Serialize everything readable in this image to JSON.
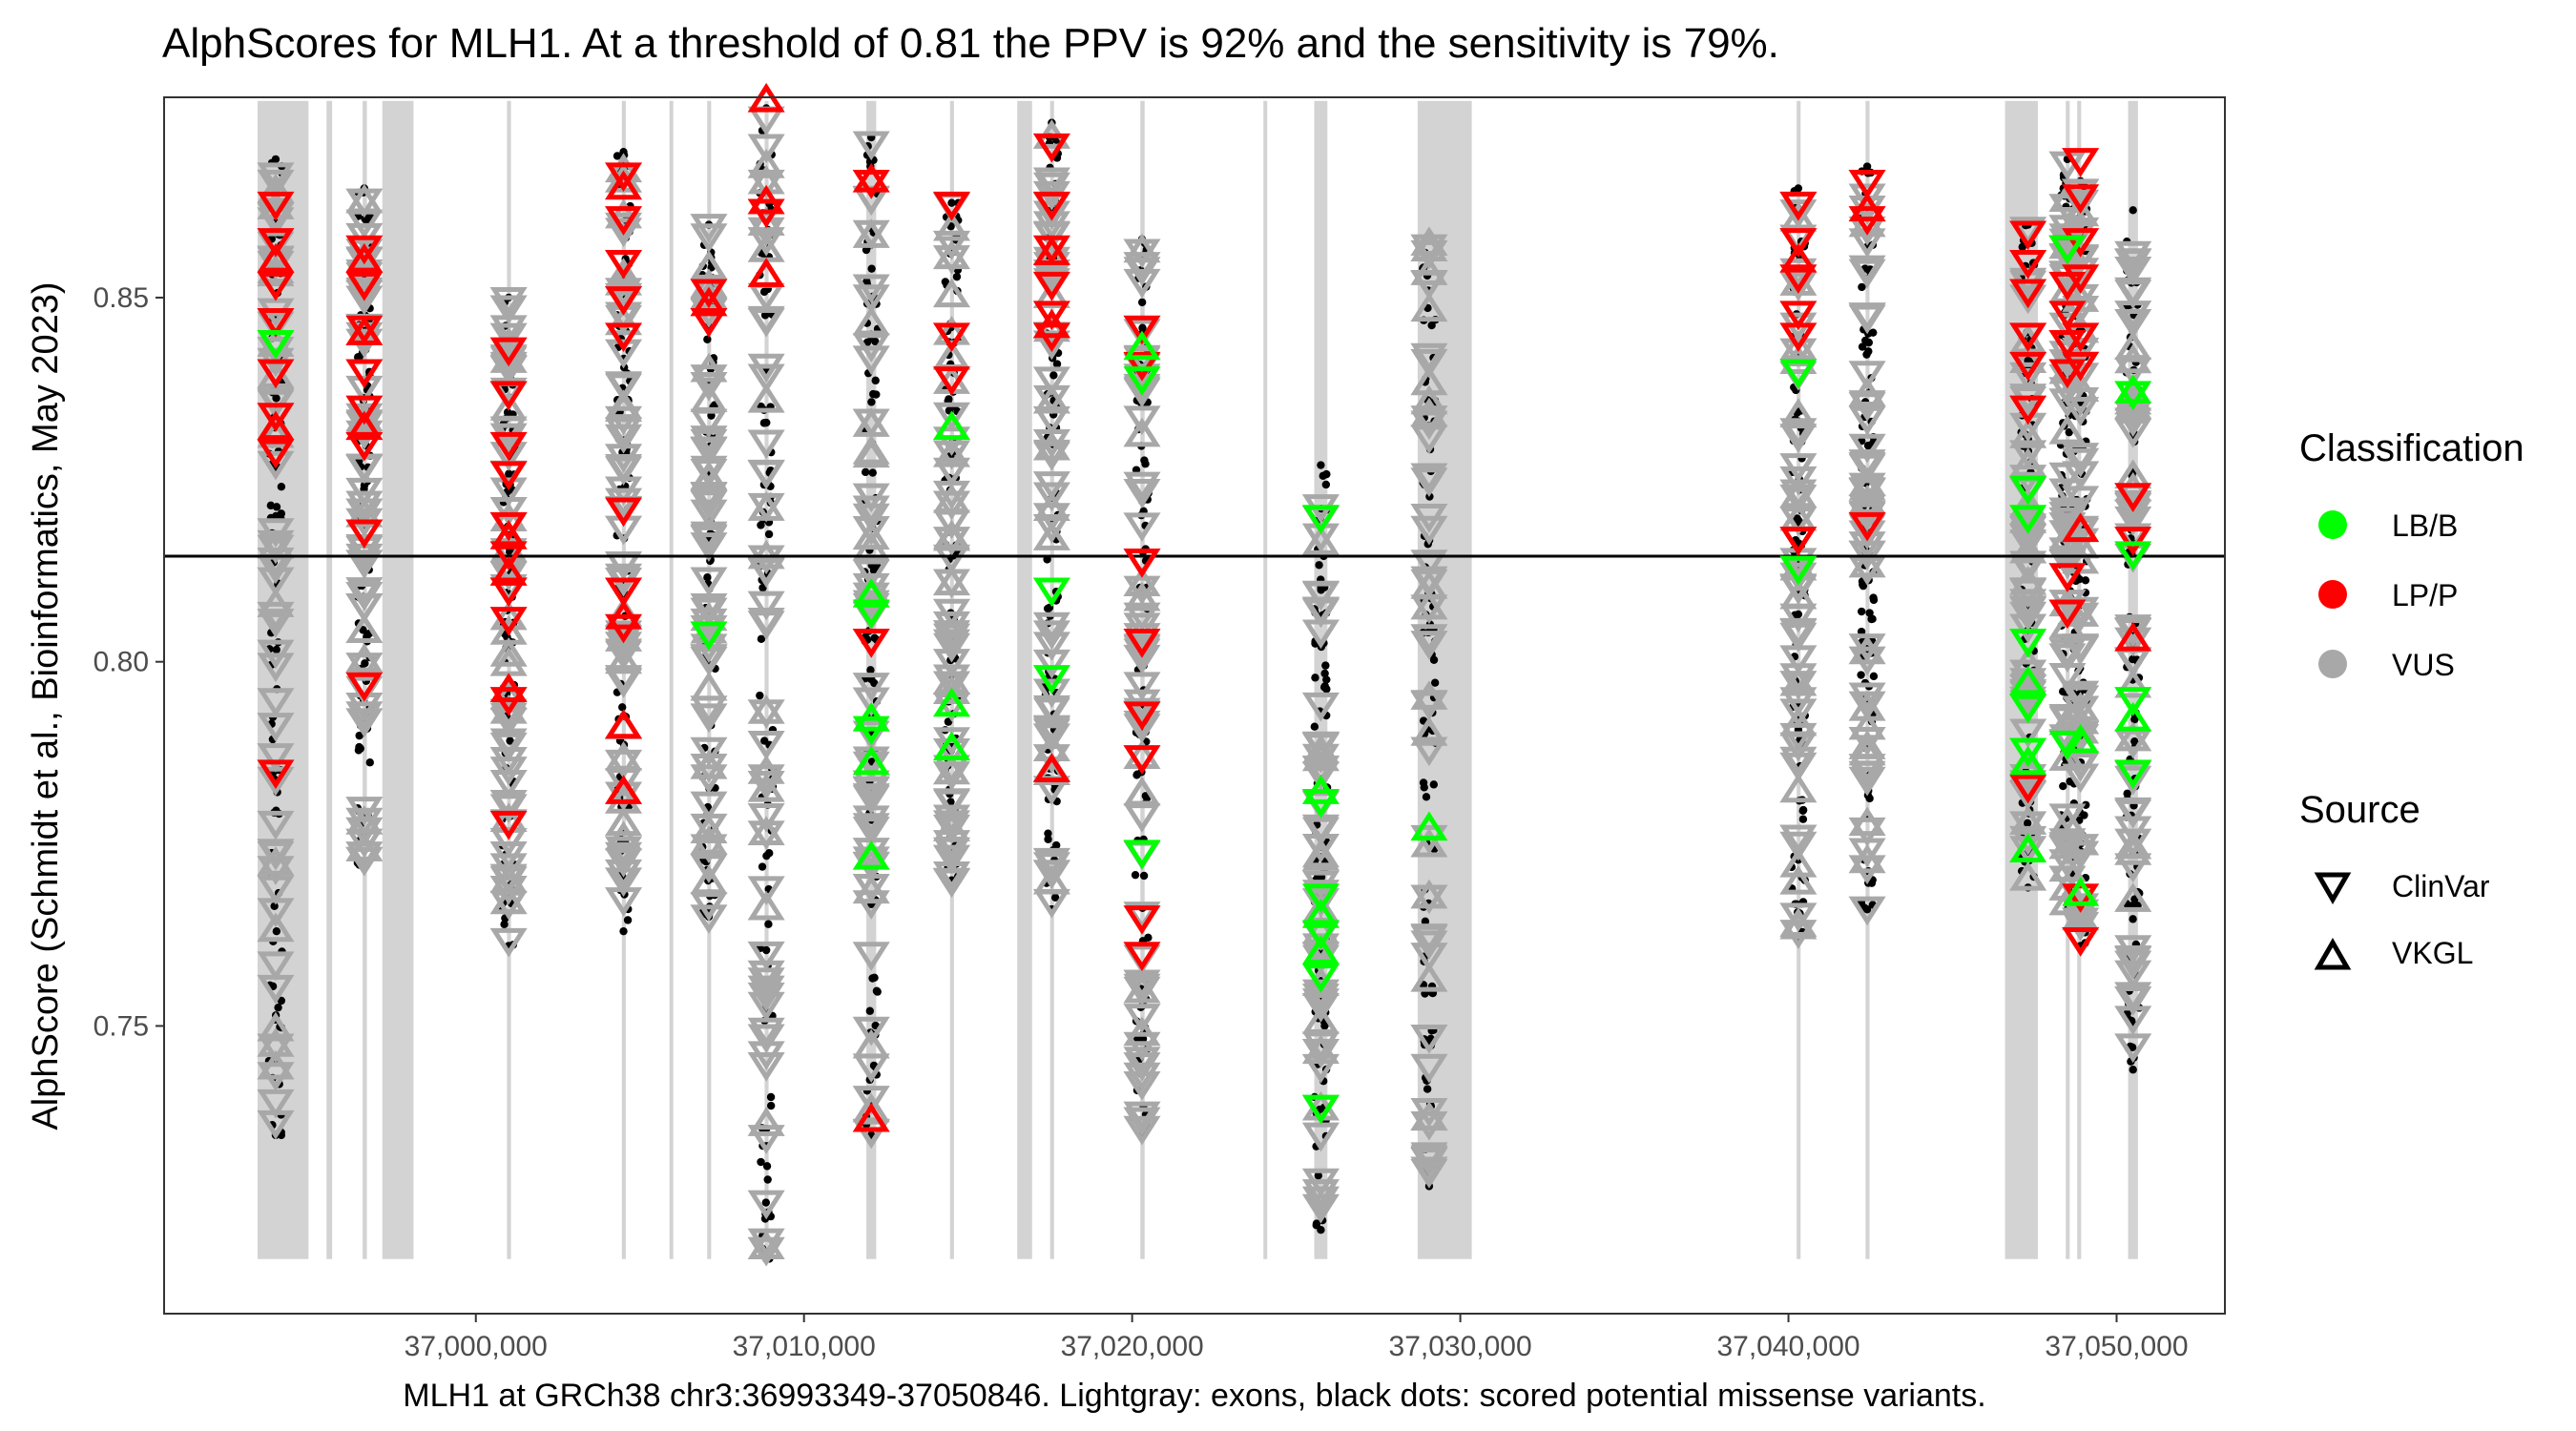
{
  "chart_data": {
    "type": "scatter",
    "title": "AlphScores for MLH1. At a threshold of 0.81 the PPV is 92% and the sensitivity is 79%.",
    "xlabel": "MLH1 at GRCh38 chr3:36993349-37050846. Lightgray: exons, black dots: scored potential missense variants.",
    "ylabel": "AlphScore (Schmidt et al., Bioinformatics, May 2023)",
    "xlim": [
      36990500,
      37053300
    ],
    "ylim": [
      0.7105,
      0.8775
    ],
    "x_ticks": [
      37000000,
      37010000,
      37020000,
      37030000,
      37040000,
      37050000
    ],
    "x_tick_labels": [
      "37,000,000",
      "37,010,000",
      "37,020,000",
      "37,030,000",
      "37,040,000",
      "37,050,000"
    ],
    "y_ticks": [
      0.75,
      0.8,
      0.85
    ],
    "y_tick_labels": [
      "0.75",
      "0.80",
      "0.85"
    ],
    "threshold": 0.8145,
    "grid": false,
    "colors": {
      "LB/B": "#00ff00",
      "LP/P": "#ff0000",
      "VUS": "#a8a8a8",
      "exon": "#d3d3d3",
      "threshold_line": "#000000",
      "background_dot": "#000000"
    },
    "exons": [
      {
        "start": 36993349,
        "end": 36994900
      },
      {
        "start": 36995450,
        "end": 36995620
      },
      {
        "start": 36996550,
        "end": 36996680
      },
      {
        "start": 36997150,
        "end": 36998100
      },
      {
        "start": 37000950,
        "end": 37001070
      },
      {
        "start": 37004450,
        "end": 37004570
      },
      {
        "start": 37005900,
        "end": 37006010
      },
      {
        "start": 37007050,
        "end": 37007170
      },
      {
        "start": 37008800,
        "end": 37008920
      },
      {
        "start": 37011900,
        "end": 37012200
      },
      {
        "start": 37014450,
        "end": 37014570
      },
      {
        "start": 37016500,
        "end": 37016950
      },
      {
        "start": 37017500,
        "end": 37017620
      },
      {
        "start": 37020250,
        "end": 37020380
      },
      {
        "start": 37024000,
        "end": 37024110
      },
      {
        "start": 37025550,
        "end": 37025950
      },
      {
        "start": 37028700,
        "end": 37030350
      },
      {
        "start": 37040250,
        "end": 37040370
      },
      {
        "start": 37042350,
        "end": 37042470
      },
      {
        "start": 37046600,
        "end": 37047600
      },
      {
        "start": 37048450,
        "end": 37048570
      },
      {
        "start": 37048800,
        "end": 37048920
      },
      {
        "start": 37050350,
        "end": 37050650
      }
    ],
    "columns": [
      {
        "x": 36993900,
        "ymin": 0.735,
        "ymax": 0.869
      },
      {
        "x": 36996600,
        "ymin": 0.772,
        "ymax": 0.865
      },
      {
        "x": 37001000,
        "ymin": 0.761,
        "ymax": 0.85
      },
      {
        "x": 37004500,
        "ymin": 0.763,
        "ymax": 0.87
      },
      {
        "x": 37007100,
        "ymin": 0.765,
        "ymax": 0.86
      },
      {
        "x": 37008850,
        "ymin": 0.718,
        "ymax": 0.876
      },
      {
        "x": 37012050,
        "ymin": 0.735,
        "ymax": 0.872
      },
      {
        "x": 37014500,
        "ymin": 0.77,
        "ymax": 0.863
      },
      {
        "x": 37017550,
        "ymin": 0.766,
        "ymax": 0.874
      },
      {
        "x": 37020300,
        "ymin": 0.735,
        "ymax": 0.858
      },
      {
        "x": 37025750,
        "ymin": 0.722,
        "ymax": 0.827
      },
      {
        "x": 37029050,
        "ymin": 0.728,
        "ymax": 0.858
      },
      {
        "x": 37040300,
        "ymin": 0.762,
        "ymax": 0.865
      },
      {
        "x": 37042400,
        "ymin": 0.766,
        "ymax": 0.868
      },
      {
        "x": 37047300,
        "ymin": 0.769,
        "ymax": 0.86
      },
      {
        "x": 37048500,
        "ymin": 0.766,
        "ymax": 0.869
      },
      {
        "x": 37048900,
        "ymin": 0.761,
        "ymax": 0.866
      },
      {
        "x": 37050500,
        "ymin": 0.744,
        "ymax": 0.862
      }
    ],
    "series": [
      {
        "name": "LP/P",
        "source": "ClinVar",
        "points": [
          [
            36993900,
            0.863
          ],
          [
            36993900,
            0.858
          ],
          [
            36993900,
            0.852
          ],
          [
            36993900,
            0.847
          ],
          [
            36993900,
            0.84
          ],
          [
            36993900,
            0.834
          ],
          [
            36993900,
            0.829
          ],
          [
            36993900,
            0.785
          ],
          [
            36996600,
            0.857
          ],
          [
            36996600,
            0.852
          ],
          [
            36996600,
            0.846
          ],
          [
            36996600,
            0.84
          ],
          [
            36996600,
            0.835
          ],
          [
            36996600,
            0.83
          ],
          [
            36996600,
            0.818
          ],
          [
            36996600,
            0.797
          ],
          [
            37001000,
            0.843
          ],
          [
            37001000,
            0.837
          ],
          [
            37001000,
            0.83
          ],
          [
            37001000,
            0.826
          ],
          [
            37001000,
            0.819
          ],
          [
            37001000,
            0.815
          ],
          [
            37001000,
            0.81
          ],
          [
            37001000,
            0.806
          ],
          [
            37001000,
            0.795
          ],
          [
            37001000,
            0.778
          ],
          [
            37004500,
            0.867
          ],
          [
            37004500,
            0.861
          ],
          [
            37004500,
            0.855
          ],
          [
            37004500,
            0.85
          ],
          [
            37004500,
            0.845
          ],
          [
            37004500,
            0.821
          ],
          [
            37004500,
            0.81
          ],
          [
            37004500,
            0.805
          ],
          [
            37007100,
            0.851
          ],
          [
            37007100,
            0.847
          ],
          [
            37008850,
            0.862
          ],
          [
            37012050,
            0.866
          ],
          [
            37012050,
            0.803
          ],
          [
            37014500,
            0.863
          ],
          [
            37014500,
            0.845
          ],
          [
            37014500,
            0.839
          ],
          [
            37017550,
            0.871
          ],
          [
            37017550,
            0.863
          ],
          [
            37017550,
            0.857
          ],
          [
            37017550,
            0.852
          ],
          [
            37017550,
            0.848
          ],
          [
            37017550,
            0.845
          ],
          [
            37020300,
            0.846
          ],
          [
            37020300,
            0.841
          ],
          [
            37020300,
            0.814
          ],
          [
            37020300,
            0.803
          ],
          [
            37020300,
            0.793
          ],
          [
            37020300,
            0.787
          ],
          [
            37020300,
            0.765
          ],
          [
            37020300,
            0.76
          ],
          [
            37040300,
            0.863
          ],
          [
            37040300,
            0.858
          ],
          [
            37040300,
            0.853
          ],
          [
            37040300,
            0.848
          ],
          [
            37040300,
            0.845
          ],
          [
            37040300,
            0.817
          ],
          [
            37042400,
            0.866
          ],
          [
            37042400,
            0.861
          ],
          [
            37042400,
            0.819
          ],
          [
            37047300,
            0.859
          ],
          [
            37047300,
            0.855
          ],
          [
            37047300,
            0.851
          ],
          [
            37047300,
            0.845
          ],
          [
            37047300,
            0.841
          ],
          [
            37047300,
            0.835
          ],
          [
            37047300,
            0.783
          ],
          [
            37048500,
            0.857
          ],
          [
            37048500,
            0.852
          ],
          [
            37048500,
            0.848
          ],
          [
            37048500,
            0.844
          ],
          [
            37048500,
            0.84
          ],
          [
            37048500,
            0.812
          ],
          [
            37048500,
            0.807
          ],
          [
            37048900,
            0.869
          ],
          [
            37048900,
            0.864
          ],
          [
            37048900,
            0.858
          ],
          [
            37048900,
            0.853
          ],
          [
            37048900,
            0.845
          ],
          [
            37048900,
            0.841
          ],
          [
            37048900,
            0.768
          ],
          [
            37048900,
            0.762
          ],
          [
            37050500,
            0.823
          ],
          [
            37050500,
            0.817
          ]
        ]
      },
      {
        "name": "LP/P",
        "source": "VKGL",
        "points": [
          [
            36993900,
            0.855
          ],
          [
            36993900,
            0.832
          ],
          [
            36996600,
            0.855
          ],
          [
            36996600,
            0.845
          ],
          [
            36996600,
            0.832
          ],
          [
            37001000,
            0.817
          ],
          [
            37001000,
            0.812
          ],
          [
            37001000,
            0.796
          ],
          [
            37004500,
            0.865
          ],
          [
            37004500,
            0.806
          ],
          [
            37004500,
            0.791
          ],
          [
            37004500,
            0.782
          ],
          [
            37007100,
            0.849
          ],
          [
            37008850,
            0.877
          ],
          [
            37008850,
            0.863
          ],
          [
            37008850,
            0.853
          ],
          [
            37012050,
            0.866
          ],
          [
            37012050,
            0.737
          ],
          [
            37017550,
            0.856
          ],
          [
            37017550,
            0.846
          ],
          [
            37017550,
            0.785
          ],
          [
            37040300,
            0.855
          ],
          [
            37042400,
            0.862
          ],
          [
            37048900,
            0.818
          ],
          [
            37050500,
            0.803
          ]
        ]
      },
      {
        "name": "LB/B",
        "source": "ClinVar",
        "points": [
          [
            36993900,
            0.844
          ],
          [
            37007100,
            0.804
          ],
          [
            37012050,
            0.807
          ],
          [
            37012050,
            0.791
          ],
          [
            37017550,
            0.81
          ],
          [
            37017550,
            0.798
          ],
          [
            37020300,
            0.839
          ],
          [
            37020300,
            0.774
          ],
          [
            37025750,
            0.82
          ],
          [
            37025750,
            0.781
          ],
          [
            37025750,
            0.768
          ],
          [
            37025750,
            0.763
          ],
          [
            37025750,
            0.757
          ],
          [
            37025750,
            0.739
          ],
          [
            37040300,
            0.84
          ],
          [
            37040300,
            0.813
          ],
          [
            37047300,
            0.824
          ],
          [
            37047300,
            0.82
          ],
          [
            37047300,
            0.803
          ],
          [
            37047300,
            0.794
          ],
          [
            37047300,
            0.788
          ],
          [
            37048500,
            0.857
          ],
          [
            37048500,
            0.789
          ],
          [
            37050500,
            0.837
          ],
          [
            37050500,
            0.815
          ],
          [
            37050500,
            0.795
          ],
          [
            37050500,
            0.785
          ]
        ]
      },
      {
        "name": "LB/B",
        "source": "VKGL",
        "points": [
          [
            37012050,
            0.809
          ],
          [
            37012050,
            0.792
          ],
          [
            37012050,
            0.786
          ],
          [
            37012050,
            0.773
          ],
          [
            37014500,
            0.832
          ],
          [
            37014500,
            0.794
          ],
          [
            37014500,
            0.788
          ],
          [
            37020300,
            0.843
          ],
          [
            37025750,
            0.782
          ],
          [
            37025750,
            0.765
          ],
          [
            37025750,
            0.76
          ],
          [
            37029050,
            0.777
          ],
          [
            37047300,
            0.797
          ],
          [
            37047300,
            0.786
          ],
          [
            37047300,
            0.774
          ],
          [
            37048900,
            0.789
          ],
          [
            37048900,
            0.768
          ],
          [
            37050500,
            0.837
          ],
          [
            37050500,
            0.792
          ]
        ]
      }
    ],
    "legend": {
      "placement": "right",
      "classification_title": "Classification",
      "classification_items": [
        "LB/B",
        "LP/P",
        "VUS"
      ],
      "source_title": "Source",
      "source_items": [
        "ClinVar",
        "VKGL"
      ]
    }
  }
}
